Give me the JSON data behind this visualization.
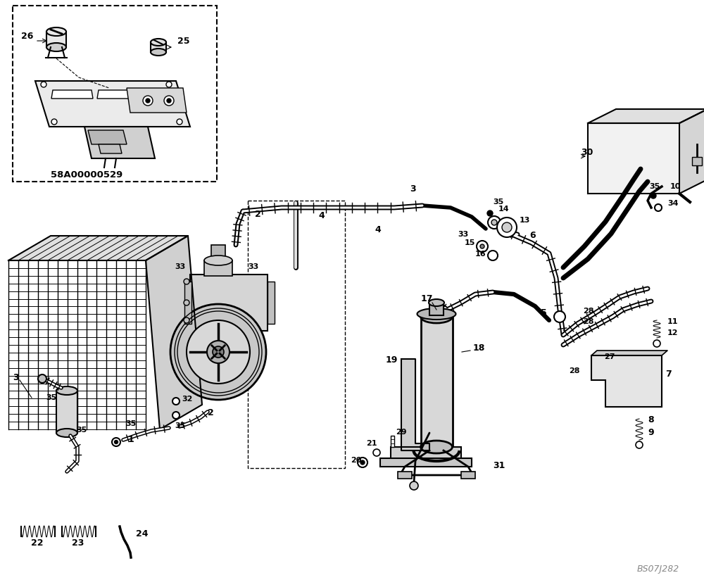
{
  "background_color": "#ffffff",
  "line_color": "#000000",
  "box_ref": "58A00000529",
  "image_ref": "BS07J282",
  "fig_width": 10.0,
  "fig_height": 8.24,
  "dpi": 100
}
